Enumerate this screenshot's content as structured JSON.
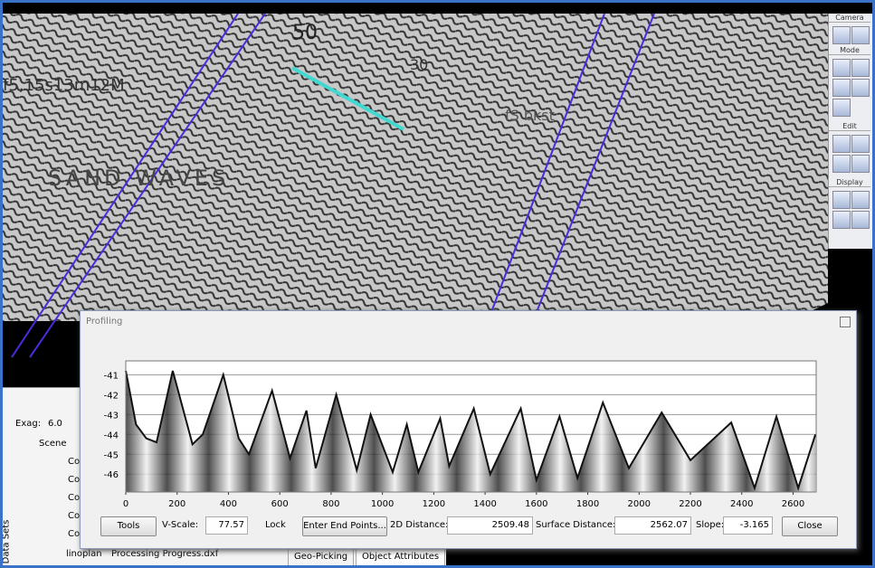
{
  "map": {
    "labels": [
      "50",
      "30",
      "SAND WAVES",
      "f5,15s13m12M",
      "fS bkst"
    ]
  },
  "toolbar": {
    "sections": [
      "Camera",
      "Mode",
      "Edit",
      "Display"
    ]
  },
  "left_panel": {
    "exag_label": "Exag:",
    "exag_value": "6.0",
    "scene": "Scene",
    "items": [
      "Co",
      "Co",
      "Co",
      "Co",
      "Co"
    ],
    "layer": "linoplan",
    "layer_file": "Processing Progress.dxf",
    "tab": "Data Sets"
  },
  "bottom_tabs": [
    "Geo-Picking",
    "Object Attributes"
  ],
  "profiling_window": {
    "title": "Profiling",
    "chart": {
      "type": "line",
      "x": [
        0,
        40,
        80,
        120,
        183,
        260,
        300,
        380,
        440,
        480,
        570,
        640,
        704,
        740,
        820,
        900,
        954,
        1040,
        1095,
        1140,
        1225,
        1260,
        1356,
        1420,
        1539,
        1600,
        1690,
        1760,
        1859,
        1960,
        2088,
        2200,
        2359,
        2450,
        2535,
        2620,
        2687
      ],
      "values": [
        -40.8,
        -43.5,
        -44.2,
        -44.4,
        -40.8,
        -44.5,
        -44.0,
        -41.0,
        -44.2,
        -45.0,
        -41.8,
        -45.2,
        -42.8,
        -45.7,
        -42.0,
        -45.8,
        -43.0,
        -45.9,
        -43.5,
        -45.9,
        -43.2,
        -45.6,
        -42.7,
        -46.0,
        -42.7,
        -46.3,
        -43.1,
        -46.2,
        -42.4,
        -45.7,
        -42.9,
        -45.3,
        -43.4,
        -46.7,
        -43.1,
        -46.7,
        -44.0
      ],
      "color": "#111111",
      "xlim": [
        0,
        2690
      ],
      "ylim": [
        -46.9,
        -40.3
      ],
      "xticks": [
        0,
        200,
        400,
        600,
        800,
        1000,
        1200,
        1400,
        1600,
        1800,
        2000,
        2200,
        2400,
        2600
      ],
      "yticks": [
        -41,
        -42,
        -43,
        -44,
        -45,
        -46
      ],
      "grid": true
    },
    "controls": {
      "tools": "Tools",
      "v_scale_label": "V-Scale:",
      "v_scale": "77.57",
      "lock": "Lock",
      "enter": "Enter End Points...",
      "distance_label": "2D Distance:",
      "distance": "2509.48",
      "surface_label": "Surface Distance:",
      "surface": "2562.07",
      "slope_label": "Slope:",
      "slope": "-3.165",
      "close": "Close"
    }
  }
}
